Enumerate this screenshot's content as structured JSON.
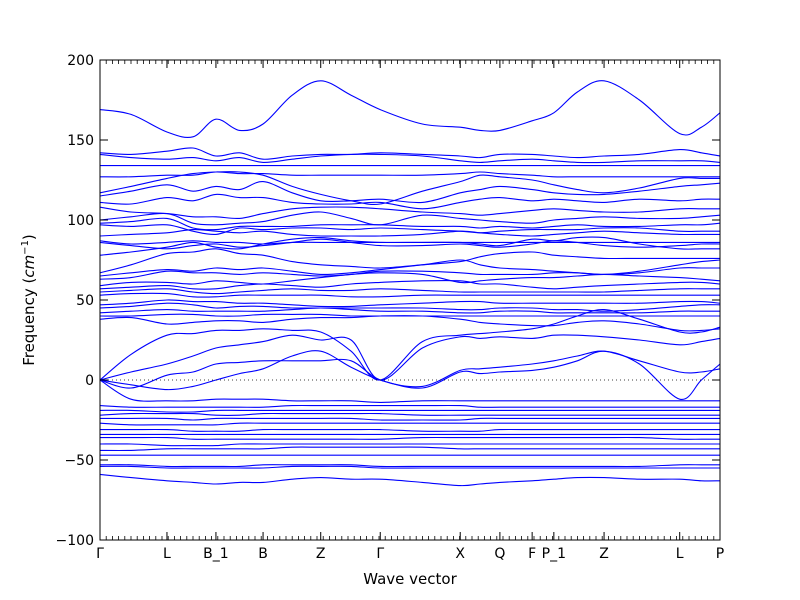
{
  "chart_data": {
    "type": "line",
    "title": "",
    "xlabel": "Wave vector",
    "ylabel": "Frequency ($cm^{-1}$)",
    "ylabel_display": {
      "main": "Frequency (",
      "unit": "cm",
      "exp": "−1",
      "close": ")"
    },
    "ylim": [
      -100,
      200
    ],
    "xlim": [
      0,
      1
    ],
    "yticks": [
      -100,
      -50,
      0,
      50,
      100,
      150,
      200
    ],
    "zero_line": true,
    "grid": false,
    "legend": "none",
    "line_color": "#0000ff",
    "xticks": [
      {
        "label": "Γ",
        "x": 0.0
      },
      {
        "label": "L",
        "x": 0.108
      },
      {
        "label": "B_1",
        "x": 0.187
      },
      {
        "label": "B",
        "x": 0.263
      },
      {
        "label": "Z",
        "x": 0.356
      },
      {
        "label": "Γ",
        "x": 0.452
      },
      {
        "label": "X",
        "x": 0.581
      },
      {
        "label": "Q",
        "x": 0.645
      },
      {
        "label": "F",
        "x": 0.697
      },
      {
        "label": "P_1",
        "x": 0.732
      },
      {
        "label": "Z",
        "x": 0.813
      },
      {
        "label": "L",
        "x": 0.935
      },
      {
        "label": "P",
        "x": 1.0
      }
    ],
    "x": [
      0,
      0.05,
      0.108,
      0.15,
      0.187,
      0.225,
      0.263,
      0.31,
      0.356,
      0.405,
      0.452,
      0.52,
      0.581,
      0.613,
      0.645,
      0.697,
      0.732,
      0.77,
      0.813,
      0.87,
      0.935,
      0.97,
      1.0
    ],
    "series": [
      {
        "values": [
          169,
          166,
          155,
          152,
          163,
          156,
          160,
          178,
          187,
          178,
          169,
          160,
          158,
          156,
          156,
          162,
          167,
          180,
          187,
          175,
          154,
          158,
          167
        ]
      },
      {
        "values": [
          142,
          141,
          143,
          145,
          140,
          142,
          138,
          140,
          141,
          141,
          142,
          141,
          140,
          139,
          141,
          141,
          140,
          139,
          140,
          141,
          144,
          142,
          140
        ]
      },
      {
        "values": [
          141,
          139,
          138,
          139,
          137,
          139,
          136,
          138,
          140,
          141,
          141,
          140,
          137,
          136,
          137,
          138,
          137,
          136,
          136,
          137,
          137,
          137,
          136
        ]
      },
      {
        "values": [
          134,
          134,
          134,
          134,
          134,
          134,
          134,
          134,
          134,
          134,
          134,
          134,
          134,
          134,
          134,
          134,
          134,
          134,
          134,
          134,
          134,
          134,
          134
        ]
      },
      {
        "values": [
          127,
          127,
          128,
          128,
          130,
          129,
          129,
          128,
          128,
          128,
          128,
          128,
          129,
          130,
          129,
          128,
          127,
          127,
          127,
          127,
          127,
          127,
          127
        ]
      },
      {
        "values": [
          117,
          121,
          126,
          129,
          130,
          130,
          128,
          121,
          116,
          112,
          110,
          118,
          124,
          128,
          127,
          125,
          122,
          119,
          117,
          120,
          126,
          126,
          126
        ]
      },
      {
        "values": [
          115,
          118,
          122,
          118,
          121,
          119,
          124,
          117,
          112,
          112,
          113,
          111,
          117,
          119,
          121,
          119,
          117,
          116,
          116,
          118,
          121,
          122,
          123
        ]
      },
      {
        "values": [
          111,
          110,
          114,
          112,
          116,
          114,
          114,
          111,
          110,
          110,
          111,
          107,
          111,
          113,
          114,
          112,
          113,
          112,
          111,
          113,
          112,
          113,
          113
        ]
      },
      {
        "values": [
          108,
          105,
          104,
          102,
          102,
          101,
          104,
          107,
          108,
          108,
          107,
          105,
          104,
          103,
          104,
          106,
          107,
          106,
          105,
          105,
          107,
          107,
          107
        ]
      },
      {
        "values": [
          100,
          102,
          104,
          98,
          97,
          98,
          99,
          103,
          105,
          101,
          97,
          103,
          101,
          100,
          99,
          98,
          100,
          101,
          102,
          101,
          101,
          102,
          103
        ]
      },
      {
        "values": [
          98,
          99,
          101,
          95,
          94,
          96,
          96,
          96,
          97,
          97,
          97,
          96,
          96,
          95,
          96,
          95,
          96,
          97,
          96,
          96,
          97,
          97,
          98
        ]
      },
      {
        "values": [
          97,
          96,
          97,
          93,
          91,
          95,
          94,
          95,
          95,
          94,
          95,
          94,
          93,
          92,
          93,
          94,
          94,
          94,
          95,
          95,
          93,
          93,
          93
        ]
      },
      {
        "values": [
          90,
          91,
          92,
          94,
          93,
          92,
          93,
          91,
          90,
          90,
          90,
          91,
          93,
          92,
          91,
          90,
          91,
          92,
          93,
          92,
          91,
          91,
          91
        ]
      },
      {
        "values": [
          87,
          85,
          86,
          87,
          86,
          86,
          85,
          86,
          86,
          86,
          86,
          86,
          86,
          86,
          86,
          86,
          86,
          86,
          86,
          86,
          86,
          86,
          86
        ]
      },
      {
        "values": [
          86,
          84,
          82,
          84,
          85,
          83,
          84,
          86,
          88,
          86,
          84,
          84,
          85,
          84,
          83,
          85,
          87,
          86,
          84,
          83,
          84,
          85,
          85
        ]
      },
      {
        "values": [
          78,
          80,
          83,
          86,
          83,
          82,
          85,
          88,
          89,
          87,
          86,
          86,
          86,
          85,
          84,
          88,
          87,
          89,
          89,
          85,
          82,
          82,
          82
        ]
      },
      {
        "values": [
          67,
          72,
          79,
          80,
          82,
          79,
          78,
          74,
          72,
          71,
          70,
          72,
          74,
          77,
          79,
          80,
          78,
          77,
          76,
          76,
          76,
          76,
          76
        ]
      },
      {
        "values": [
          65,
          67,
          69,
          68,
          70,
          69,
          70,
          68,
          66,
          67,
          69,
          72,
          75,
          72,
          70,
          69,
          68,
          67,
          66,
          68,
          72,
          74,
          75
        ]
      },
      {
        "values": [
          63,
          64,
          68,
          67,
          67,
          66,
          67,
          66,
          65,
          66,
          68,
          68,
          67,
          66,
          66,
          66,
          67,
          67,
          66,
          67,
          70,
          70,
          70
        ]
      },
      {
        "values": [
          59,
          61,
          61,
          60,
          62,
          61,
          60,
          62,
          64,
          66,
          67,
          66,
          61,
          62,
          63,
          64,
          64,
          65,
          66,
          65,
          64,
          63,
          62
        ]
      },
      {
        "values": [
          57,
          58,
          59,
          57,
          57,
          59,
          60,
          59,
          58,
          60,
          61,
          62,
          62,
          60,
          60,
          58,
          57,
          58,
          59,
          60,
          61,
          61,
          60
        ]
      },
      {
        "values": [
          55,
          56,
          57,
          55,
          54,
          55,
          56,
          57,
          56,
          56,
          57,
          56,
          55,
          55,
          55,
          55,
          55,
          55,
          55,
          56,
          57,
          57,
          57
        ]
      },
      {
        "values": [
          53,
          54,
          54,
          52,
          52,
          53,
          53,
          53,
          53,
          52,
          52,
          53,
          53,
          53,
          53,
          53,
          53,
          53,
          53,
          53,
          53,
          53,
          53
        ]
      },
      {
        "values": [
          47,
          48,
          50,
          49,
          49,
          48,
          48,
          47,
          46,
          46,
          47,
          48,
          49,
          49,
          48,
          48,
          48,
          48,
          48,
          48,
          49,
          49,
          48
        ]
      },
      {
        "values": [
          45,
          46,
          48,
          47,
          45,
          46,
          46,
          45,
          45,
          45,
          45,
          45,
          44,
          44,
          45,
          45,
          44,
          44,
          43,
          44,
          46,
          47,
          47
        ]
      },
      {
        "values": [
          42,
          43,
          44,
          43,
          43,
          43,
          43,
          44,
          45,
          44,
          43,
          43,
          42,
          42,
          43,
          43,
          42,
          42,
          42,
          42,
          43,
          43,
          43
        ]
      },
      {
        "values": [
          40,
          40,
          41,
          41,
          40,
          40,
          41,
          41,
          41,
          40,
          40,
          40,
          40,
          40,
          40,
          40,
          40,
          40,
          40,
          40,
          40,
          40,
          40
        ]
      },
      {
        "values": [
          38,
          39,
          35,
          36,
          37,
          37,
          36,
          38,
          39,
          39,
          40,
          40,
          38,
          36,
          35,
          34,
          34,
          36,
          37,
          35,
          31,
          31,
          32
        ]
      },
      {
        "values": [
          0,
          16,
          28,
          29,
          31,
          31,
          32,
          31,
          30,
          18,
          0,
          24,
          28,
          29,
          30,
          32,
          35,
          40,
          44,
          38,
          30,
          30,
          33
        ]
      },
      {
        "values": [
          0,
          5,
          10,
          15,
          20,
          22,
          24,
          28,
          25,
          25,
          0,
          20,
          27,
          26,
          27,
          26,
          28,
          28,
          27,
          25,
          22,
          24,
          26
        ]
      },
      {
        "values": [
          0,
          -5,
          3,
          5,
          10,
          11,
          12,
          12,
          12,
          12,
          0,
          -4,
          6,
          7,
          8,
          10,
          12,
          15,
          18,
          12,
          5,
          5,
          7
        ]
      },
      {
        "values": [
          0,
          -3,
          -6,
          -4,
          0,
          4,
          7,
          15,
          18,
          8,
          0,
          -5,
          5,
          4,
          5,
          6,
          8,
          12,
          18,
          10,
          -12,
          0,
          10
        ]
      },
      {
        "values": [
          0,
          -12,
          -13,
          -13,
          -12,
          -12,
          -12,
          -13,
          -13,
          -13,
          -14,
          -13,
          -13,
          -13,
          -13,
          -13,
          -13,
          -13,
          -13,
          -13,
          -13,
          -13,
          -13
        ]
      },
      {
        "values": [
          -16,
          -17,
          -17,
          -17,
          -17,
          -17,
          -17,
          -16,
          -16,
          -16,
          -16,
          -16,
          -16,
          -17,
          -17,
          -17,
          -17,
          -17,
          -17,
          -17,
          -17,
          -17,
          -17
        ]
      },
      {
        "values": [
          -19,
          -19,
          -20,
          -20,
          -19,
          -19,
          -19,
          -19,
          -19,
          -19,
          -19,
          -19,
          -19,
          -19,
          -19,
          -19,
          -19,
          -19,
          -19,
          -19,
          -19,
          -19,
          -19
        ]
      },
      {
        "values": [
          -22,
          -21,
          -21,
          -21,
          -22,
          -22,
          -21,
          -21,
          -21,
          -21,
          -21,
          -22,
          -22,
          -22,
          -22,
          -22,
          -22,
          -22,
          -22,
          -22,
          -22,
          -22,
          -22
        ]
      },
      {
        "values": [
          -24,
          -24,
          -24,
          -25,
          -24,
          -24,
          -24,
          -24,
          -24,
          -24,
          -25,
          -25,
          -25,
          -24,
          -24,
          -24,
          -24,
          -24,
          -24,
          -24,
          -24,
          -24,
          -24
        ]
      },
      {
        "values": [
          -27,
          -28,
          -28,
          -28,
          -28,
          -27,
          -27,
          -27,
          -27,
          -27,
          -27,
          -27,
          -27,
          -27,
          -27,
          -27,
          -27,
          -27,
          -27,
          -27,
          -27,
          -27,
          -27
        ]
      },
      {
        "values": [
          -31,
          -31,
          -31,
          -32,
          -32,
          -32,
          -31,
          -31,
          -31,
          -31,
          -31,
          -32,
          -32,
          -32,
          -31,
          -31,
          -31,
          -31,
          -31,
          -31,
          -31,
          -31,
          -31
        ]
      },
      {
        "values": [
          -34,
          -34,
          -34,
          -34,
          -34,
          -34,
          -34,
          -34,
          -34,
          -34,
          -34,
          -34,
          -34,
          -34,
          -34,
          -34,
          -34,
          -34,
          -34,
          -34,
          -34,
          -34,
          -34
        ]
      },
      {
        "values": [
          -36,
          -36,
          -36,
          -37,
          -37,
          -37,
          -37,
          -37,
          -37,
          -37,
          -37,
          -36,
          -36,
          -36,
          -36,
          -36,
          -36,
          -36,
          -36,
          -36,
          -37,
          -37,
          -37
        ]
      },
      {
        "values": [
          -40,
          -40,
          -41,
          -41,
          -41,
          -40,
          -40,
          -40,
          -40,
          -40,
          -40,
          -40,
          -40,
          -40,
          -40,
          -40,
          -40,
          -40,
          -40,
          -40,
          -40,
          -40,
          -40
        ]
      },
      {
        "values": [
          -44,
          -44,
          -43,
          -43,
          -43,
          -43,
          -43,
          -42,
          -42,
          -42,
          -42,
          -42,
          -43,
          -43,
          -43,
          -43,
          -43,
          -43,
          -43,
          -43,
          -43,
          -43,
          -43
        ]
      },
      {
        "values": [
          -47,
          -47,
          -47,
          -47,
          -47,
          -47,
          -47,
          -47,
          -47,
          -47,
          -47,
          -47,
          -47,
          -47,
          -47,
          -47,
          -47,
          -47,
          -47,
          -47,
          -47,
          -47,
          -47
        ]
      },
      {
        "values": [
          -53,
          -53,
          -54,
          -54,
          -54,
          -54,
          -53,
          -53,
          -53,
          -53,
          -54,
          -54,
          -54,
          -54,
          -54,
          -54,
          -54,
          -54,
          -54,
          -54,
          -53,
          -53,
          -53
        ]
      },
      {
        "values": [
          -54,
          -54,
          -55,
          -55,
          -55,
          -55,
          -55,
          -54,
          -54,
          -54,
          -55,
          -55,
          -55,
          -55,
          -55,
          -55,
          -55,
          -55,
          -55,
          -55,
          -55,
          -55,
          -55
        ]
      },
      {
        "values": [
          -59,
          -61,
          -63,
          -64,
          -65,
          -64,
          -64,
          -62,
          -61,
          -62,
          -62,
          -64,
          -66,
          -65,
          -64,
          -63,
          -62,
          -61,
          -61,
          -62,
          -62,
          -63,
          -63
        ]
      }
    ]
  }
}
